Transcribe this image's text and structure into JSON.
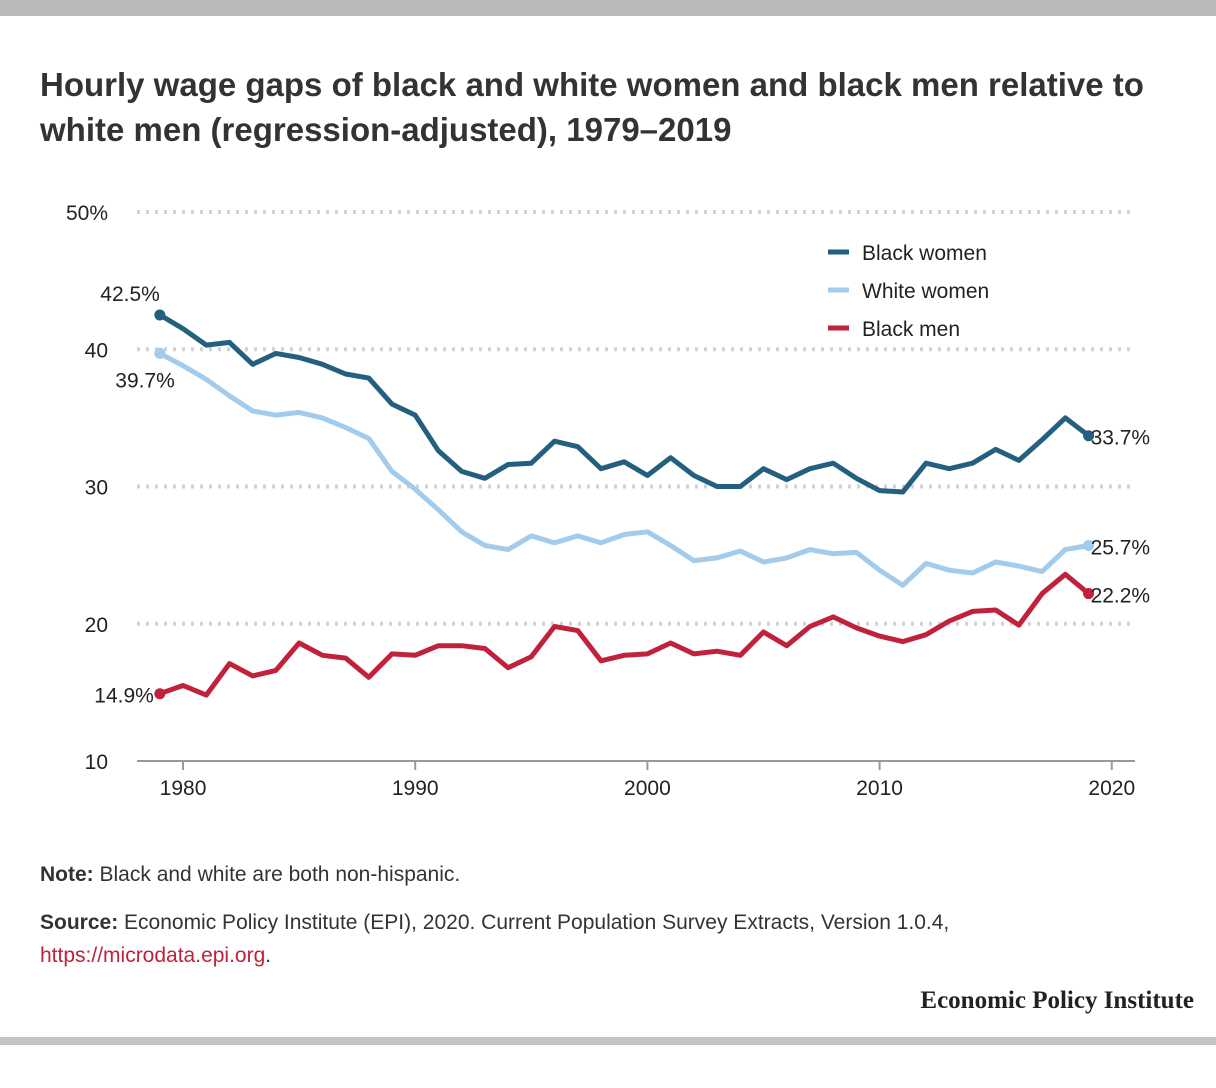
{
  "title": "Hourly wage gaps of black and white women and black men relative to white men (regression-adjusted), 1979–2019",
  "note": {
    "label": "Note:",
    "text": " Black and white are both non-hispanic."
  },
  "source": {
    "label": "Source:",
    "text": " Economic Policy Institute (EPI), 2020. Current Population Survey Extracts, Version 1.0.4,",
    "link": "https://microdata.epi.org",
    "suffix": "."
  },
  "brand": "Economic Policy Institute",
  "chart_data": {
    "type": "line",
    "xlim": [
      1977.5,
      2021
    ],
    "ylim": [
      10,
      50
    ],
    "x_ticks": [
      1980,
      1990,
      2000,
      2010,
      2020
    ],
    "x_tick_labels": [
      "1980",
      "1990",
      "2000",
      "2010",
      "2020"
    ],
    "y_ticks": [
      10,
      20,
      30,
      40,
      50
    ],
    "y_tick_labels": [
      "10",
      "20",
      "30",
      "40",
      "50%"
    ],
    "grid": "horizontal-dotted",
    "legend_position": "top-right",
    "x": [
      1979,
      1980,
      1981,
      1982,
      1983,
      1984,
      1985,
      1986,
      1987,
      1988,
      1989,
      1990,
      1991,
      1992,
      1993,
      1994,
      1995,
      1996,
      1997,
      1998,
      1999,
      2000,
      2001,
      2002,
      2003,
      2004,
      2005,
      2006,
      2007,
      2008,
      2009,
      2010,
      2011,
      2012,
      2013,
      2014,
      2015,
      2016,
      2017,
      2018,
      2019
    ],
    "series": [
      {
        "name": "Black women",
        "color": "#23607f",
        "values": [
          42.5,
          41.5,
          40.3,
          40.5,
          38.9,
          39.7,
          39.4,
          38.9,
          38.2,
          37.9,
          36.0,
          35.2,
          32.6,
          31.1,
          30.6,
          31.6,
          31.7,
          33.3,
          32.9,
          31.3,
          31.8,
          30.8,
          32.1,
          30.8,
          30.0,
          30.0,
          31.3,
          30.5,
          31.3,
          31.7,
          30.6,
          29.7,
          29.6,
          31.7,
          31.3,
          31.7,
          32.7,
          31.9,
          33.4,
          35.0,
          33.7
        ],
        "start_label": "42.5%",
        "end_label": "33.7%"
      },
      {
        "name": "White women",
        "color": "#a3cbec",
        "values": [
          39.7,
          38.8,
          37.8,
          36.6,
          35.5,
          35.2,
          35.4,
          35.0,
          34.3,
          33.5,
          31.1,
          29.8,
          28.3,
          26.7,
          25.7,
          25.4,
          26.4,
          25.9,
          26.4,
          25.9,
          26.5,
          26.7,
          25.7,
          24.6,
          24.8,
          25.3,
          24.5,
          24.8,
          25.4,
          25.1,
          25.2,
          23.9,
          22.8,
          24.4,
          23.9,
          23.7,
          24.5,
          24.2,
          23.8,
          25.4,
          25.7
        ],
        "start_label": "39.7%",
        "end_label": "25.7%"
      },
      {
        "name": "Black men",
        "color": "#c0223b",
        "values": [
          14.9,
          15.5,
          14.8,
          17.1,
          16.2,
          16.6,
          18.6,
          17.7,
          17.5,
          16.1,
          17.8,
          17.7,
          18.4,
          18.4,
          18.2,
          16.8,
          17.6,
          19.8,
          19.5,
          17.3,
          17.7,
          17.8,
          18.6,
          17.8,
          18.0,
          17.7,
          19.4,
          18.4,
          19.8,
          20.5,
          19.7,
          19.1,
          18.7,
          19.2,
          20.2,
          20.9,
          21.0,
          19.9,
          22.2,
          23.6,
          22.2
        ],
        "start_label": "14.9%",
        "end_label": "22.2%"
      }
    ]
  }
}
